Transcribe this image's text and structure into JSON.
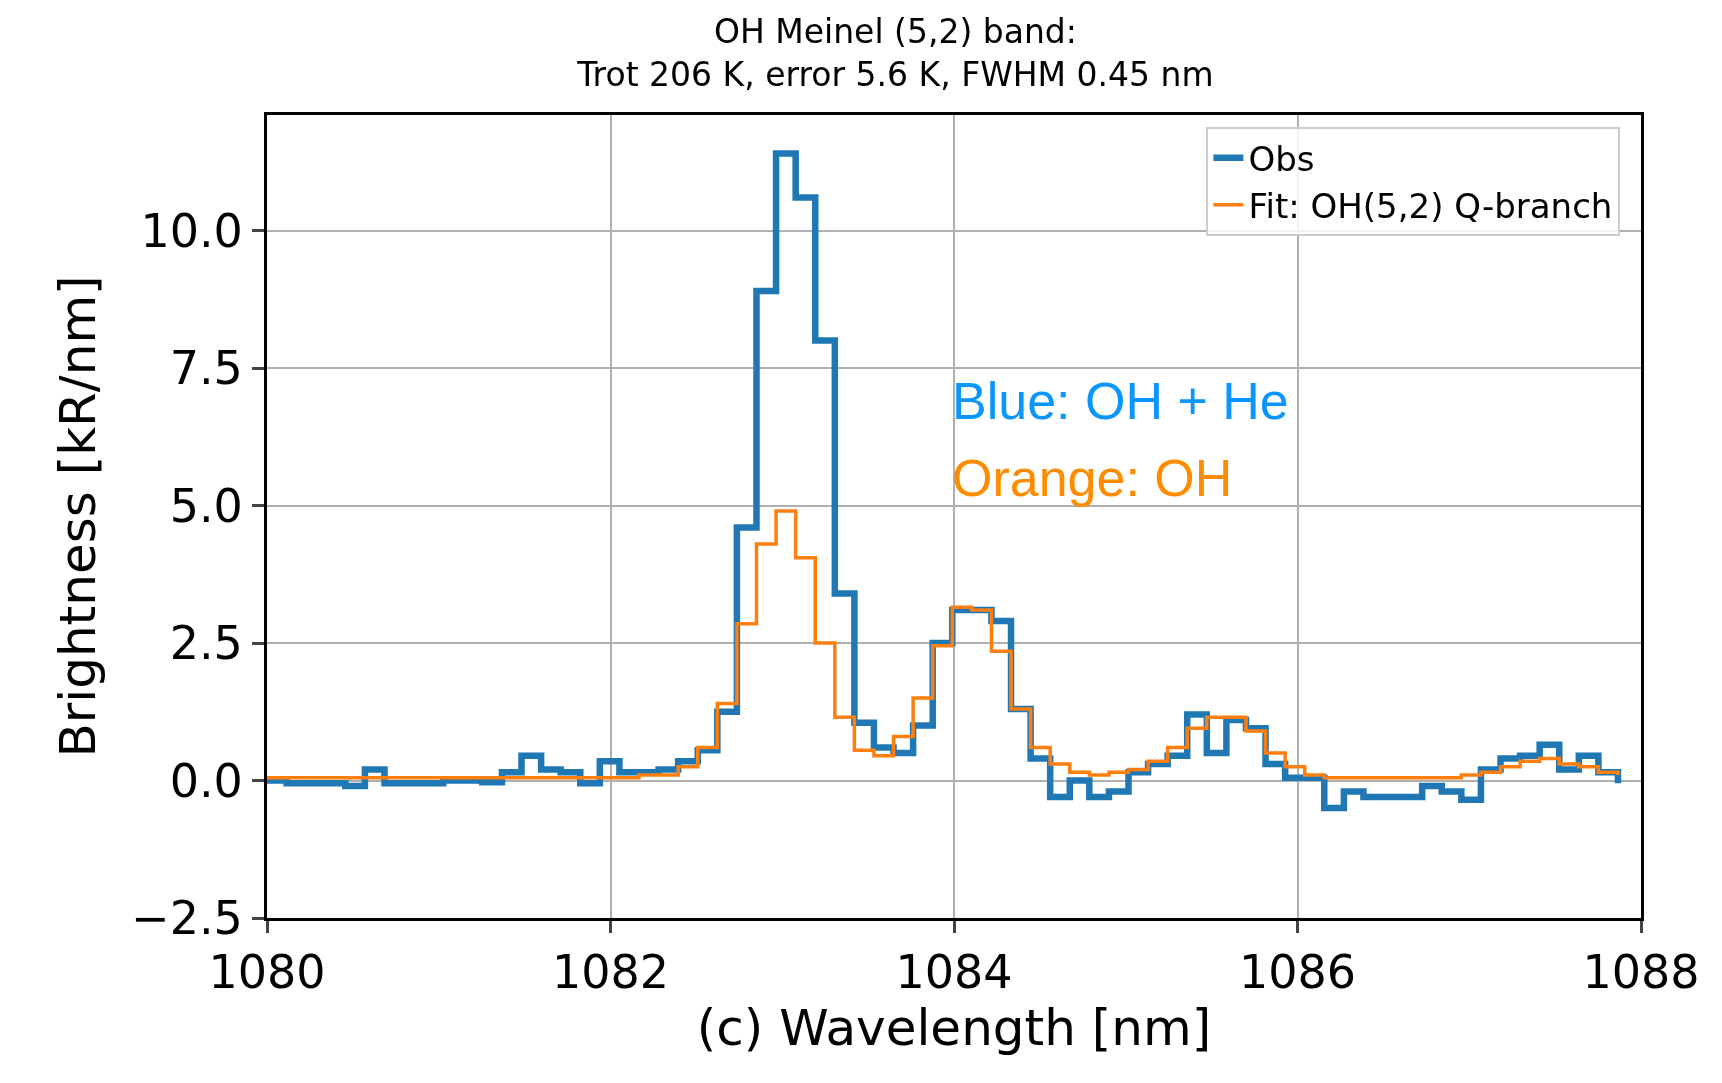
{
  "chart_data": {
    "type": "step",
    "title": "OH Meinel (5,2) band:\nTrot 206 K, error 5.6 K, FWHM 0.45 nm",
    "xlabel": "(c) Wavelength [nm]",
    "ylabel": "Brightness [kR/nm]",
    "x": [
      1080,
      1080.114,
      1080.228,
      1080.342,
      1080.456,
      1080.57,
      1080.684,
      1080.798,
      1080.912,
      1081.026,
      1081.14,
      1081.254,
      1081.368,
      1081.482,
      1081.596,
      1081.71,
      1081.824,
      1081.938,
      1082.052,
      1082.166,
      1082.28,
      1082.394,
      1082.508,
      1082.622,
      1082.736,
      1082.85,
      1082.964,
      1083.078,
      1083.192,
      1083.306,
      1083.42,
      1083.534,
      1083.648,
      1083.762,
      1083.876,
      1083.99,
      1084.104,
      1084.218,
      1084.332,
      1084.446,
      1084.56,
      1084.674,
      1084.788,
      1084.902,
      1085.016,
      1085.13,
      1085.244,
      1085.358,
      1085.472,
      1085.586,
      1085.7,
      1085.814,
      1085.928,
      1086.042,
      1086.156,
      1086.27,
      1086.384,
      1086.498,
      1086.612,
      1086.726,
      1086.84,
      1086.954,
      1087.068,
      1087.182,
      1087.296,
      1087.41,
      1087.524,
      1087.638,
      1087.752,
      1087.866
    ],
    "series": [
      {
        "name": "Obs",
        "color": "#1f77b4",
        "values": [
          0,
          -0.05,
          -0.05,
          -0.05,
          -0.1,
          0.2,
          -0.05,
          -0.05,
          -0.05,
          0,
          0,
          -0.03,
          0.15,
          0.45,
          0.2,
          0.15,
          -0.05,
          0.35,
          0.15,
          0.15,
          0.2,
          0.35,
          0.55,
          1.25,
          4.6,
          8.9,
          11.4,
          10.6,
          8.0,
          3.4,
          1.05,
          0.6,
          0.5,
          1.0,
          2.5,
          3.1,
          3.1,
          2.9,
          1.3,
          0.4,
          -0.3,
          0,
          -0.3,
          -0.2,
          0.15,
          0.3,
          0.45,
          1.2,
          0.5,
          1.1,
          0.95,
          0.3,
          0.05,
          0.05,
          -0.5,
          -0.2,
          -0.3,
          -0.3,
          -0.3,
          -0.1,
          -0.2,
          -0.35,
          0.2,
          0.4,
          0.45,
          0.65,
          0.2,
          0.45,
          0.15,
          -0.05
        ]
      },
      {
        "name": "Fit: OH(5,2) Q-branch",
        "color": "#ff7f0e",
        "values": [
          0.05,
          0.05,
          0.05,
          0.05,
          0.05,
          0.05,
          0.05,
          0.05,
          0.05,
          0.05,
          0.05,
          0.05,
          0.05,
          0.05,
          0.05,
          0.05,
          0.05,
          0.05,
          0.05,
          0.1,
          0.1,
          0.25,
          0.6,
          1.4,
          2.85,
          4.3,
          4.9,
          4.05,
          2.5,
          1.15,
          0.55,
          0.45,
          0.8,
          1.5,
          2.45,
          3.15,
          3.1,
          2.35,
          1.3,
          0.6,
          0.3,
          0.15,
          0.1,
          0.15,
          0.2,
          0.35,
          0.6,
          0.95,
          1.15,
          1.15,
          0.9,
          0.5,
          0.25,
          0.1,
          0.05,
          0.05,
          0.05,
          0.05,
          0.05,
          0.05,
          0.05,
          0.1,
          0.15,
          0.25,
          0.35,
          0.4,
          0.3,
          0.25,
          0.15,
          0.1
        ]
      }
    ],
    "annotations": [
      "Blue: OH + He",
      "Orange: OH"
    ],
    "xlim": [
      1080,
      1088
    ],
    "xticks": [
      1080,
      1082,
      1084,
      1086,
      1088
    ],
    "ylim": [
      -2.5,
      12.1
    ],
    "yticks": [
      {
        "value": -2.5,
        "label": "−2.5"
      },
      {
        "value": 0,
        "label": "0.0"
      },
      {
        "value": 2.5,
        "label": "2.5"
      },
      {
        "value": 5,
        "label": "5.0"
      },
      {
        "value": 7.5,
        "label": "7.5"
      },
      {
        "value": 10,
        "label": "10.0"
      }
    ],
    "grid": true,
    "legend": "top right",
    "line_style": "solid",
    "marker": "none"
  }
}
